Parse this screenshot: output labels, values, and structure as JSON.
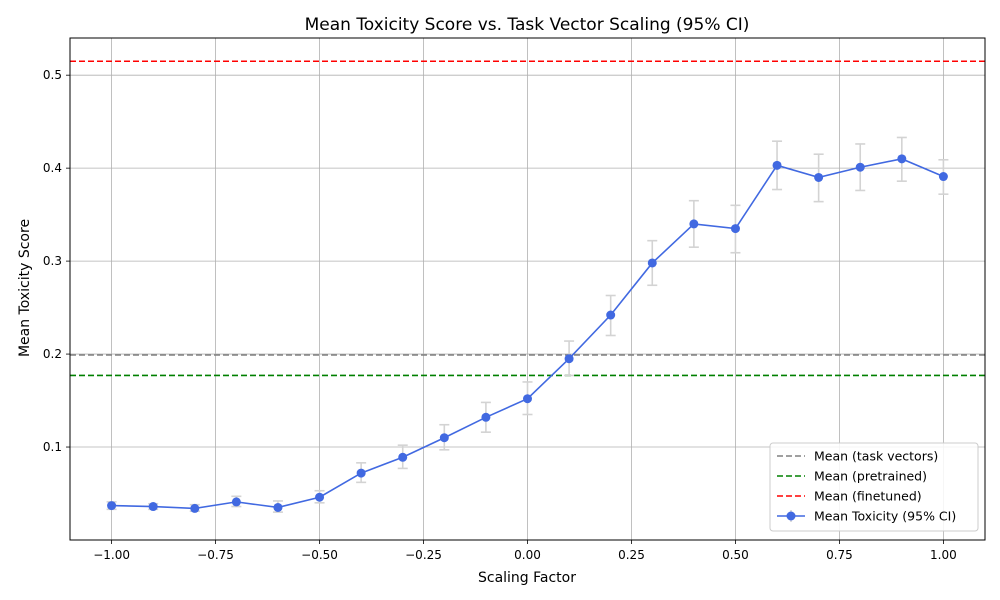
{
  "chart_data": {
    "type": "line",
    "title": "Mean Toxicity Score vs. Task Vector Scaling (95% CI)",
    "xlabel": "Scaling Factor",
    "ylabel": "Mean Toxicity Score",
    "xlim": [
      -1.1,
      1.1
    ],
    "ylim": [
      0.0,
      0.54
    ],
    "xticks": [
      -1.0,
      -0.75,
      -0.5,
      -0.25,
      0.0,
      0.25,
      0.5,
      0.75,
      1.0
    ],
    "xtick_labels": [
      "−1.00",
      "−0.75",
      "−0.50",
      "−0.25",
      "0.00",
      "0.25",
      "0.50",
      "0.75",
      "1.00"
    ],
    "yticks": [
      0.1,
      0.2,
      0.3,
      0.4,
      0.5
    ],
    "ytick_labels": [
      "0.1",
      "0.2",
      "0.3",
      "0.4",
      "0.5"
    ],
    "grid": true,
    "legend_position": "lower-right",
    "series": [
      {
        "name": "Mean Toxicity (95% CI)",
        "color": "#4169e1",
        "ci_color": "#d3d3d3",
        "x": [
          -1.0,
          -0.9,
          -0.8,
          -0.7,
          -0.6,
          -0.5,
          -0.4,
          -0.3,
          -0.2,
          -0.1,
          0.0,
          0.1,
          0.2,
          0.3,
          0.4,
          0.5,
          0.6,
          0.7,
          0.8,
          0.9,
          1.0
        ],
        "y": [
          0.037,
          0.036,
          0.034,
          0.041,
          0.035,
          0.046,
          0.072,
          0.089,
          0.11,
          0.132,
          0.152,
          0.195,
          0.242,
          0.298,
          0.34,
          0.335,
          0.403,
          0.39,
          0.401,
          0.41,
          0.391
        ],
        "ci_low": [
          0.033,
          0.033,
          0.031,
          0.036,
          0.03,
          0.04,
          0.062,
          0.077,
          0.097,
          0.116,
          0.135,
          0.177,
          0.22,
          0.274,
          0.315,
          0.309,
          0.377,
          0.364,
          0.376,
          0.386,
          0.372
        ],
        "ci_high": [
          0.041,
          0.039,
          0.038,
          0.047,
          0.042,
          0.053,
          0.083,
          0.102,
          0.124,
          0.148,
          0.17,
          0.214,
          0.263,
          0.322,
          0.365,
          0.36,
          0.429,
          0.415,
          0.426,
          0.433,
          0.409
        ]
      }
    ],
    "reference_lines": [
      {
        "name": "Mean (task vectors)",
        "y": 0.199,
        "color": "#808080"
      },
      {
        "name": "Mean (pretrained)",
        "y": 0.177,
        "color": "#008000"
      },
      {
        "name": "Mean (finetuned)",
        "y": 0.515,
        "color": "#ff0000"
      }
    ]
  }
}
